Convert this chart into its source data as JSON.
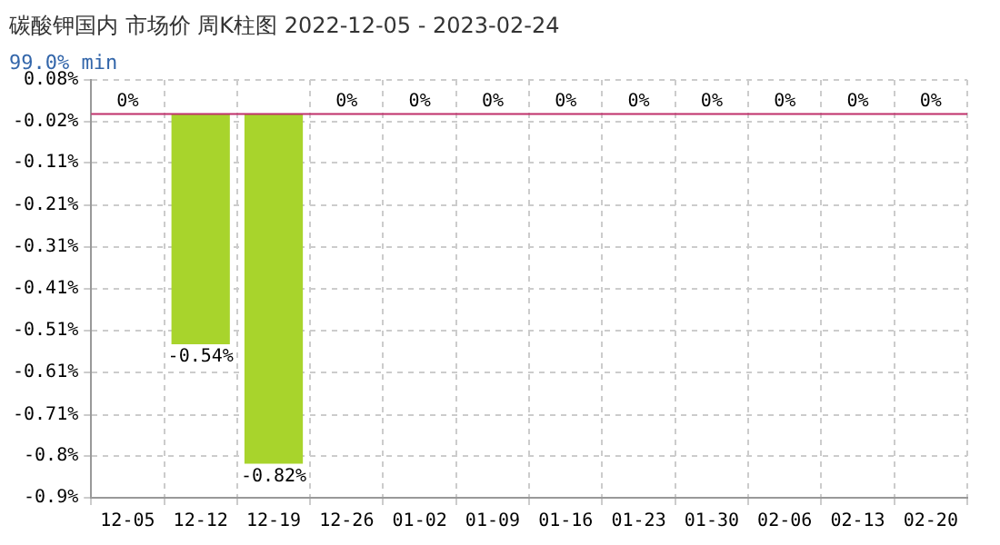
{
  "chart_data": {
    "type": "bar",
    "title": "碳酸钾国内 市场价 周K柱图 2022-12-05 - 2023-02-24",
    "subtitle": "99.0% min",
    "categories": [
      "12-05",
      "12-12",
      "12-19",
      "12-26",
      "01-02",
      "01-09",
      "01-16",
      "01-23",
      "01-30",
      "02-06",
      "02-13",
      "02-20"
    ],
    "values": [
      0,
      -0.54,
      -0.82,
      0,
      0,
      0,
      0,
      0,
      0,
      0,
      0,
      0
    ],
    "value_labels": [
      "0%",
      "-0.54%",
      "-0.82%",
      "0%",
      "0%",
      "0%",
      "0%",
      "0%",
      "0%",
      "0%",
      "0%",
      "0%"
    ],
    "color": "#a8d42c",
    "ylim": [
      -0.9,
      0.08
    ],
    "yticks": [
      {
        "value": 0.08,
        "label": "0.08%"
      },
      {
        "value": -0.018,
        "label": "-0.02%"
      },
      {
        "value": -0.114,
        "label": "-0.11%"
      },
      {
        "value": -0.214,
        "label": "-0.21%"
      },
      {
        "value": -0.312,
        "label": "-0.31%"
      },
      {
        "value": -0.41,
        "label": "-0.41%"
      },
      {
        "value": -0.508,
        "label": "-0.51%"
      },
      {
        "value": -0.606,
        "label": "-0.61%"
      },
      {
        "value": -0.706,
        "label": "-0.71%"
      },
      {
        "value": -0.802,
        "label": "-0.8%"
      },
      {
        "value": -0.9,
        "label": "-0.9%"
      }
    ],
    "ref_lines": [
      {
        "axis": "y",
        "value": 0,
        "color": "#c0306a"
      }
    ],
    "grid": true,
    "legend": false
  }
}
